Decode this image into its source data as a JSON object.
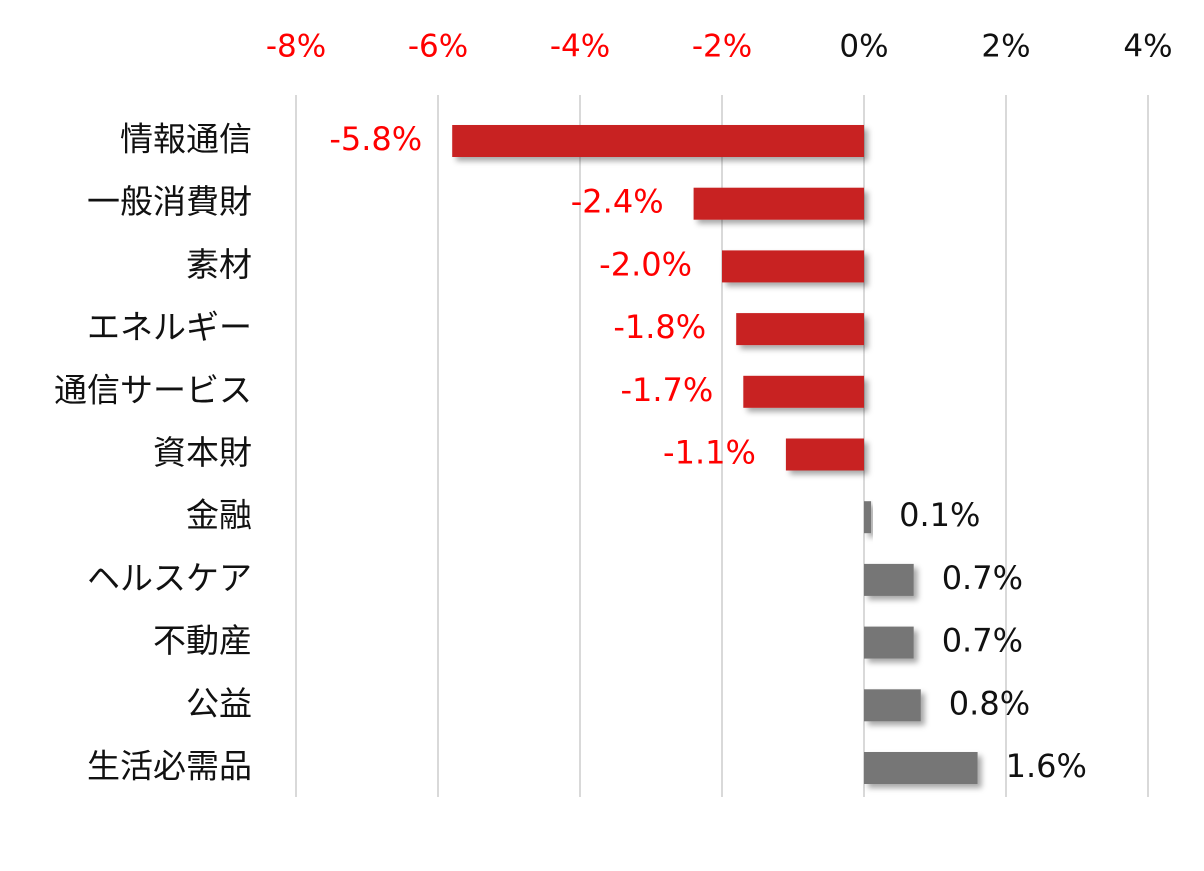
{
  "chart_data": {
    "type": "bar",
    "orientation": "horizontal",
    "categories": [
      "情報通信",
      "一般消費財",
      "素材",
      "エネルギー",
      "通信サービス",
      "資本財",
      "金融",
      "ヘルスケア",
      "不動産",
      "公益",
      "生活必需品"
    ],
    "values": [
      -5.8,
      -2.4,
      -2.0,
      -1.8,
      -1.7,
      -1.1,
      0.1,
      0.7,
      0.7,
      0.8,
      1.6
    ],
    "value_labels": [
      "-5.8%",
      "-2.4%",
      "-2.0%",
      "-1.8%",
      "-1.7%",
      "-1.1%",
      "0.1%",
      "0.7%",
      "0.7%",
      "0.8%",
      "1.6%"
    ],
    "negative_color": "#c82423",
    "positive_color": "#767676",
    "xlim": [
      -8,
      4
    ],
    "xticks": [
      {
        "value": -8,
        "label": "-8%"
      },
      {
        "value": -6,
        "label": "-6%"
      },
      {
        "value": -4,
        "label": "-4%"
      },
      {
        "value": -2,
        "label": "-2%"
      },
      {
        "value": 0,
        "label": "0%"
      },
      {
        "value": 2,
        "label": "2%"
      },
      {
        "value": 4,
        "label": "4%"
      }
    ],
    "grid": true
  }
}
